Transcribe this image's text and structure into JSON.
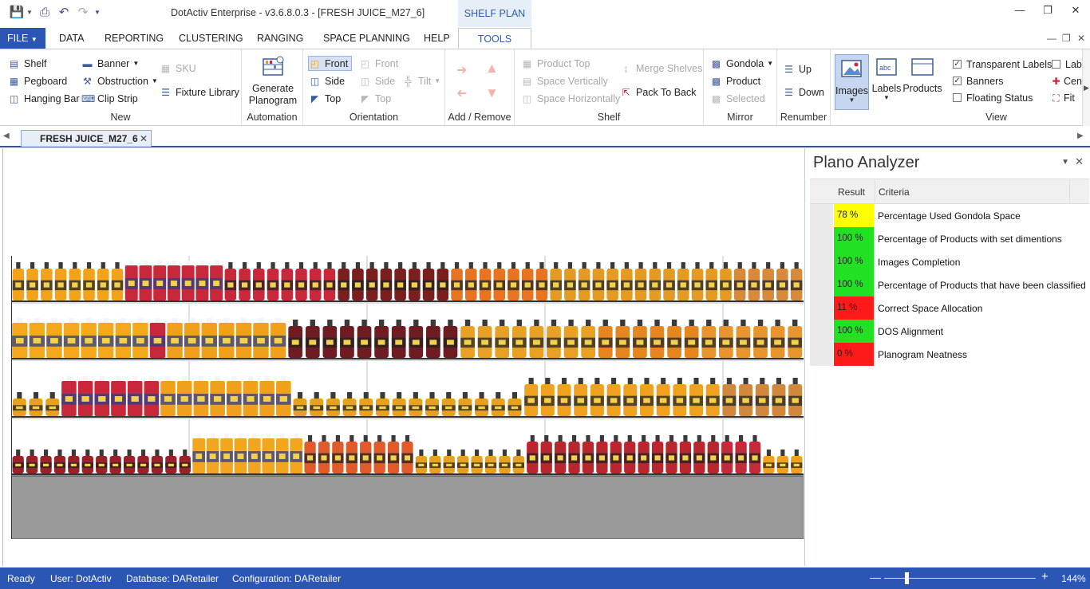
{
  "window": {
    "title": "DotActiv Enterprise - v3.6.8.0.3 - [FRESH JUICE_M27_6]",
    "context_tab": "SHELF PLAN"
  },
  "menu": {
    "file": "FILE",
    "tabs": [
      "DATA",
      "REPORTING",
      "CLUSTERING",
      "RANGING",
      "SPACE PLANNING",
      "HELP"
    ],
    "active": "TOOLS"
  },
  "ribbon": {
    "new": {
      "label": "New",
      "shelf": "Shelf",
      "pegboard": "Pegboard",
      "hanging_bar": "Hanging Bar",
      "banner": "Banner",
      "obstruction": "Obstruction",
      "clip_strip": "Clip Strip",
      "sku": "SKU",
      "fixture_library": "Fixture Library"
    },
    "automation": {
      "label": "Automation",
      "generate": "Generate Planogram"
    },
    "orientation": {
      "label": "Orientation",
      "front": "Front",
      "side": "Side",
      "top": "Top",
      "front2": "Front",
      "side2": "Side",
      "top2": "Top",
      "tilt": "Tilt"
    },
    "add_remove": {
      "label": "Add / Remove"
    },
    "shelf": {
      "label": "Shelf",
      "product_top": "Product Top",
      "space_vertically": "Space Vertically",
      "space_horizontally": "Space Horizontally",
      "merge_shelves": "Merge Shelves",
      "pack_to_back": "Pack To Back"
    },
    "mirror": {
      "label": "Mirror",
      "gondola": "Gondola",
      "product": "Product",
      "selected": "Selected"
    },
    "renumber": {
      "label": "Renumber",
      "up": "Up",
      "down": "Down"
    },
    "view": {
      "label": "View",
      "images": "Images",
      "labels": "Labels",
      "products": "Products",
      "transparent_labels": "Transparent Labels",
      "banners": "Banners",
      "floating_status": "Floating Status",
      "lab": "Lab",
      "cen": "Cen",
      "fit": "Fit",
      "transparent_labels_checked": true,
      "banners_checked": true,
      "floating_status_checked": false
    }
  },
  "document_tab": "FRESH JUICE_M27_6",
  "analyzer": {
    "title": "Plano Analyzer",
    "headers": {
      "result": "Result",
      "criteria": "Criteria"
    },
    "rows": [
      {
        "result": "78 %",
        "criteria": "Percentage Used Gondola Space",
        "color": "#ffff00"
      },
      {
        "result": "100 %",
        "criteria": "Percentage of Products with set dimentions",
        "color": "#22e022"
      },
      {
        "result": "100 %",
        "criteria": "Images Completion",
        "color": "#22e022"
      },
      {
        "result": "100 %",
        "criteria": "Percentage of Products that have been classified",
        "color": "#22e022"
      },
      {
        "result": "11 %",
        "criteria": "Correct Space Allocation",
        "color": "#ff1a1a"
      },
      {
        "result": "100 %",
        "criteria": "DOS Alignment",
        "color": "#22e022"
      },
      {
        "result": "0 %",
        "criteria": "Planogram Neatness",
        "color": "#ff1a1a"
      }
    ]
  },
  "status": {
    "ready": "Ready",
    "user": "User: DotActiv",
    "database": "Database: DARetailer",
    "configuration": "Configuration: DARetailer",
    "zoom": "144%"
  },
  "planogram": {
    "shelves": [
      [
        [
          "#f3a21b",
          8,
          "bottle"
        ],
        [
          "#c9283a",
          7,
          "jug"
        ],
        [
          "#c9283a",
          8,
          "bottle"
        ],
        [
          "#7a1e1e",
          8,
          "bottle"
        ],
        [
          "#e8741f",
          7,
          "bottle"
        ],
        [
          "#e49a23",
          13,
          "bottle"
        ],
        [
          "#d9893a",
          5,
          "bottle"
        ]
      ],
      [
        [
          "#f4a91c",
          8,
          "jug"
        ],
        [
          "#c9283a",
          1,
          "jug"
        ],
        [
          "#f1a01c",
          7,
          "jug"
        ],
        [
          "#6e1c22",
          10,
          "bottle"
        ],
        [
          "#e8a125",
          8,
          "bottle"
        ],
        [
          "#e6861f",
          6,
          "bottle"
        ],
        [
          "#e8952d",
          6,
          "bottle"
        ]
      ],
      [
        [
          "#e8a020",
          3,
          "small"
        ],
        [
          "#c9283a",
          6,
          "jug"
        ],
        [
          "#f1a01c",
          8,
          "jug"
        ],
        [
          "#e8a020",
          14,
          "small"
        ],
        [
          "#f0a11d",
          12,
          "bottle"
        ],
        [
          "#d1883c",
          5,
          "bottle"
        ]
      ],
      [
        [
          "#9a2128",
          13,
          "small"
        ],
        [
          "#f2a51e",
          8,
          "jug"
        ],
        [
          "#e05a2a",
          8,
          "bottle"
        ],
        [
          "#e8a020",
          8,
          "small"
        ],
        [
          "#b9262e",
          14,
          "bottle"
        ],
        [
          "#c42a3a",
          3,
          "bottle"
        ],
        [
          "#f1a01c",
          3,
          "small"
        ]
      ]
    ]
  }
}
